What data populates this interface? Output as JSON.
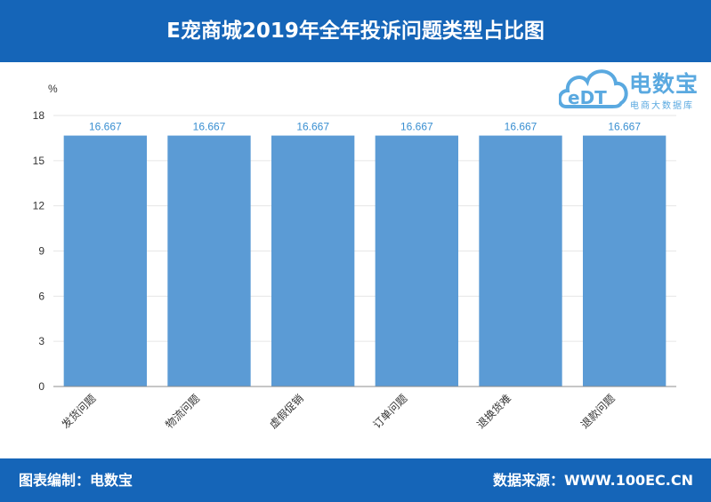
{
  "header": {
    "title": "E宠商城2019年全年投诉问题类型占比图"
  },
  "footer": {
    "credit_left": "图表编制：电数宝",
    "credit_right": "数据来源：WWW.100EC.CN"
  },
  "logo": {
    "name": "电数宝",
    "tagline": "电商大数据库",
    "mark": "eDT"
  },
  "colors": {
    "brand": "#1565b8",
    "bar": "#5b9bd5",
    "value_label": "#3a8fd1"
  },
  "chart_data": {
    "type": "bar",
    "ylabel": "%",
    "xlabel": "",
    "ylim": [
      0,
      18
    ],
    "yticks": [
      0,
      3,
      6,
      9,
      12,
      15,
      18
    ],
    "grid": true,
    "categories": [
      "发货问题",
      "物流问题",
      "虚假促销",
      "订单问题",
      "退换货难",
      "退款问题"
    ],
    "values": [
      16.667,
      16.667,
      16.667,
      16.667,
      16.667,
      16.667
    ],
    "data_labels": [
      "16.667",
      "16.667",
      "16.667",
      "16.667",
      "16.667",
      "16.667"
    ]
  }
}
